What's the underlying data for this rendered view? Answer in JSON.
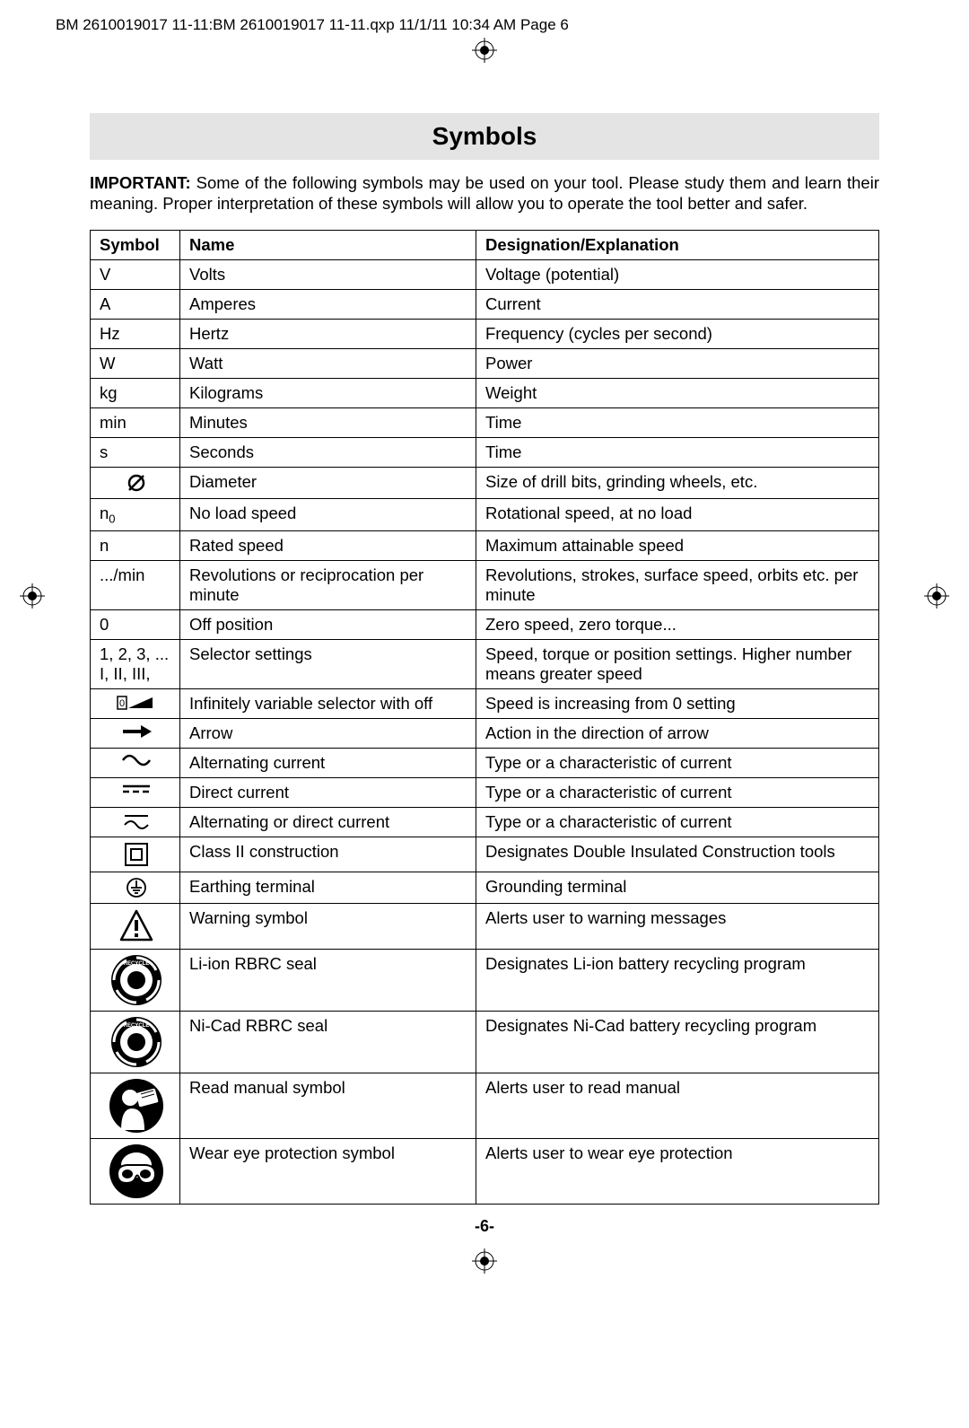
{
  "header_text": "BM 2610019017 11-11:BM 2610019017 11-11.qxp  11/1/11  10:34 AM  Page 6",
  "title": "Symbols",
  "intro_strong": "IMPORTANT:",
  "intro_rest": " Some of the following symbols may be used on your tool.  Please study them and learn their meaning.  Proper interpretation of these symbols will allow you to operate the tool better and safer.",
  "columns": {
    "c1": "Symbol",
    "c2": "Name",
    "c3": "Designation/Explanation"
  },
  "rows": [
    {
      "sym_text": "V",
      "name": "Volts",
      "expl": "Voltage (potential)"
    },
    {
      "sym_text": "A",
      "name": "Amperes",
      "expl": "Current"
    },
    {
      "sym_text": "Hz",
      "name": "Hertz",
      "expl": "Frequency (cycles per second)"
    },
    {
      "sym_text": "W",
      "name": "Watt",
      "expl": "Power"
    },
    {
      "sym_text": "kg",
      "name": "Kilograms",
      "expl": "Weight"
    },
    {
      "sym_text": "min",
      "name": "Minutes",
      "expl": "Time"
    },
    {
      "sym_text": "s",
      "name": "Seconds",
      "expl": "Time"
    },
    {
      "sym_icon": "diameter",
      "name": "Diameter",
      "expl": "Size of drill bits, grinding wheels,  etc."
    },
    {
      "sym_html": "n<span class='sub'>0</span>",
      "name": "No load speed",
      "expl": "Rotational speed, at no load"
    },
    {
      "sym_text": "n",
      "name": "Rated speed",
      "expl": "Maximum attainable speed"
    },
    {
      "sym_text": ".../min",
      "name": "Revolutions or reciprocation per minute",
      "expl": "Revolutions, strokes, surface speed, orbits etc. per minute"
    },
    {
      "sym_text": "0",
      "name": "Off position",
      "expl": "Zero speed, zero torque..."
    },
    {
      "sym_html": "1, 2, 3, ...<br>I, II, III,",
      "name": "Selector settings",
      "expl": "Speed, torque or position settings. Higher number means greater speed"
    },
    {
      "sym_icon": "ramp",
      "name": "Infinitely variable selector with off",
      "expl": "Speed is increasing from 0 setting"
    },
    {
      "sym_icon": "arrow",
      "name": "Arrow",
      "expl": "Action in the direction of arrow"
    },
    {
      "sym_icon": "ac",
      "name": "Alternating current",
      "expl": "Type or a characteristic of current"
    },
    {
      "sym_icon": "dc",
      "name": "Direct current",
      "expl": "Type or a characteristic of current"
    },
    {
      "sym_icon": "acdc",
      "name": "Alternating or direct current",
      "expl": "Type or a characteristic of current"
    },
    {
      "sym_icon": "class2",
      "name": "Class II construction",
      "expl": "Designates Double Insulated Construction tools"
    },
    {
      "sym_icon": "earth",
      "name": "Earthing terminal",
      "expl": "Grounding terminal"
    },
    {
      "sym_icon": "warning",
      "name": "Warning symbol",
      "expl": "Alerts user to warning messages"
    },
    {
      "sym_icon": "rbrc",
      "name": "Li-ion RBRC seal",
      "expl": "Designates Li-ion battery recycling program"
    },
    {
      "sym_icon": "rbrc",
      "name": "Ni-Cad RBRC seal",
      "expl": "Designates Ni-Cad battery recycling program"
    },
    {
      "sym_icon": "manual",
      "name": "Read manual symbol",
      "expl": "Alerts user to read manual"
    },
    {
      "sym_icon": "goggles",
      "name": "Wear eye protection symbol",
      "expl": "Alerts user to wear eye protection"
    }
  ],
  "page_number": "-6-",
  "icon_sizes": {
    "small": 24,
    "warning": 40,
    "seal": 58,
    "manual": 62,
    "goggles": 62
  },
  "colors": {
    "ink": "#000000",
    "title_bg": "#e4e4e4",
    "page_bg": "#ffffff"
  }
}
